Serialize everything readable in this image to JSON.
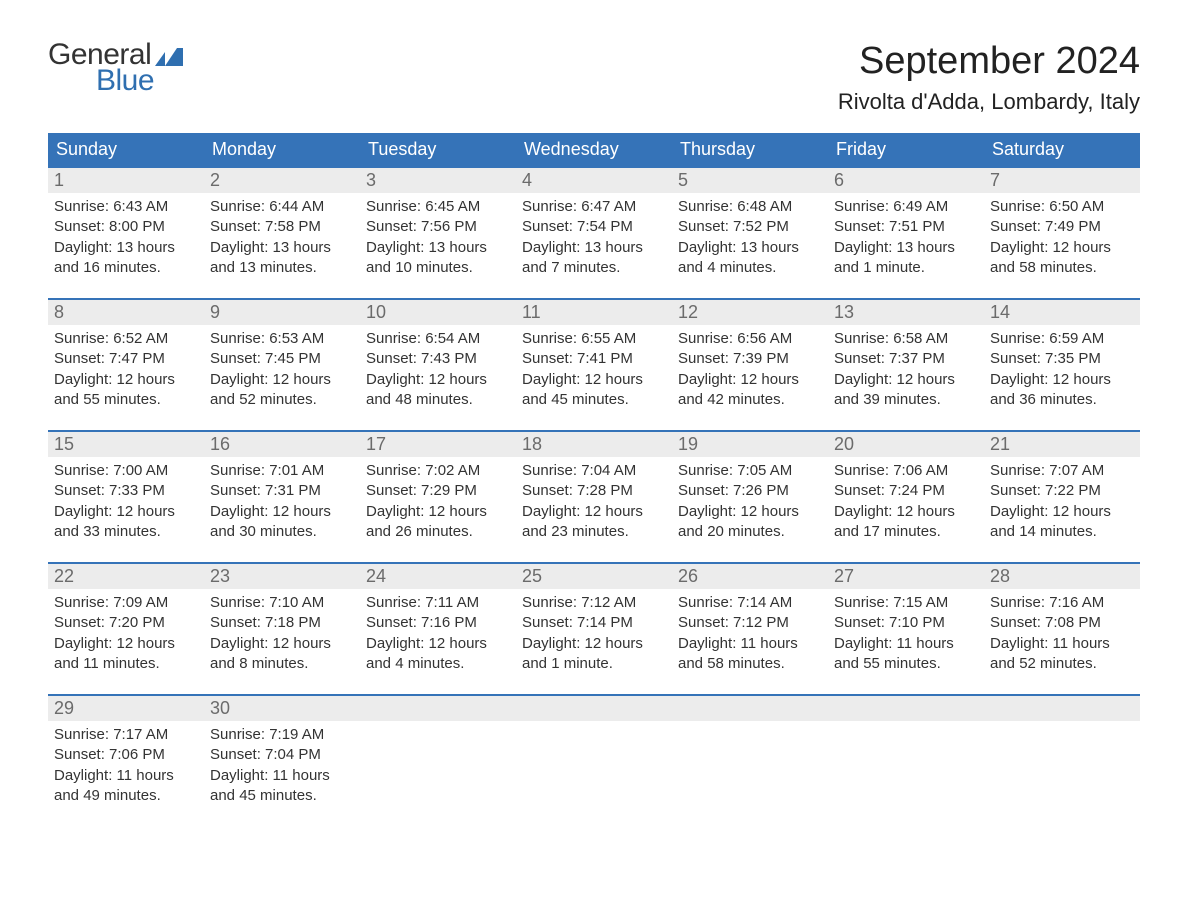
{
  "logo": {
    "word1": "General",
    "word2": "Blue",
    "text_color": "#333333",
    "accent_color": "#2f6fb0"
  },
  "title": "September 2024",
  "location": "Rivolta d'Adda, Lombardy, Italy",
  "colors": {
    "header_bg": "#3573b8",
    "header_text": "#ffffff",
    "daynum_bg": "#ececec",
    "daynum_text": "#6b6b6b",
    "body_text": "#333333",
    "week_border": "#3573b8",
    "page_bg": "#ffffff"
  },
  "fonts": {
    "title_pt": 38,
    "location_pt": 22,
    "weekday_pt": 18,
    "daynum_pt": 18,
    "body_pt": 15
  },
  "weekdays": [
    "Sunday",
    "Monday",
    "Tuesday",
    "Wednesday",
    "Thursday",
    "Friday",
    "Saturday"
  ],
  "weeks": [
    [
      {
        "n": "1",
        "sr": "Sunrise: 6:43 AM",
        "ss": "Sunset: 8:00 PM",
        "d1": "Daylight: 13 hours",
        "d2": "and 16 minutes."
      },
      {
        "n": "2",
        "sr": "Sunrise: 6:44 AM",
        "ss": "Sunset: 7:58 PM",
        "d1": "Daylight: 13 hours",
        "d2": "and 13 minutes."
      },
      {
        "n": "3",
        "sr": "Sunrise: 6:45 AM",
        "ss": "Sunset: 7:56 PM",
        "d1": "Daylight: 13 hours",
        "d2": "and 10 minutes."
      },
      {
        "n": "4",
        "sr": "Sunrise: 6:47 AM",
        "ss": "Sunset: 7:54 PM",
        "d1": "Daylight: 13 hours",
        "d2": "and 7 minutes."
      },
      {
        "n": "5",
        "sr": "Sunrise: 6:48 AM",
        "ss": "Sunset: 7:52 PM",
        "d1": "Daylight: 13 hours",
        "d2": "and 4 minutes."
      },
      {
        "n": "6",
        "sr": "Sunrise: 6:49 AM",
        "ss": "Sunset: 7:51 PM",
        "d1": "Daylight: 13 hours",
        "d2": "and 1 minute."
      },
      {
        "n": "7",
        "sr": "Sunrise: 6:50 AM",
        "ss": "Sunset: 7:49 PM",
        "d1": "Daylight: 12 hours",
        "d2": "and 58 minutes."
      }
    ],
    [
      {
        "n": "8",
        "sr": "Sunrise: 6:52 AM",
        "ss": "Sunset: 7:47 PM",
        "d1": "Daylight: 12 hours",
        "d2": "and 55 minutes."
      },
      {
        "n": "9",
        "sr": "Sunrise: 6:53 AM",
        "ss": "Sunset: 7:45 PM",
        "d1": "Daylight: 12 hours",
        "d2": "and 52 minutes."
      },
      {
        "n": "10",
        "sr": "Sunrise: 6:54 AM",
        "ss": "Sunset: 7:43 PM",
        "d1": "Daylight: 12 hours",
        "d2": "and 48 minutes."
      },
      {
        "n": "11",
        "sr": "Sunrise: 6:55 AM",
        "ss": "Sunset: 7:41 PM",
        "d1": "Daylight: 12 hours",
        "d2": "and 45 minutes."
      },
      {
        "n": "12",
        "sr": "Sunrise: 6:56 AM",
        "ss": "Sunset: 7:39 PM",
        "d1": "Daylight: 12 hours",
        "d2": "and 42 minutes."
      },
      {
        "n": "13",
        "sr": "Sunrise: 6:58 AM",
        "ss": "Sunset: 7:37 PM",
        "d1": "Daylight: 12 hours",
        "d2": "and 39 minutes."
      },
      {
        "n": "14",
        "sr": "Sunrise: 6:59 AM",
        "ss": "Sunset: 7:35 PM",
        "d1": "Daylight: 12 hours",
        "d2": "and 36 minutes."
      }
    ],
    [
      {
        "n": "15",
        "sr": "Sunrise: 7:00 AM",
        "ss": "Sunset: 7:33 PM",
        "d1": "Daylight: 12 hours",
        "d2": "and 33 minutes."
      },
      {
        "n": "16",
        "sr": "Sunrise: 7:01 AM",
        "ss": "Sunset: 7:31 PM",
        "d1": "Daylight: 12 hours",
        "d2": "and 30 minutes."
      },
      {
        "n": "17",
        "sr": "Sunrise: 7:02 AM",
        "ss": "Sunset: 7:29 PM",
        "d1": "Daylight: 12 hours",
        "d2": "and 26 minutes."
      },
      {
        "n": "18",
        "sr": "Sunrise: 7:04 AM",
        "ss": "Sunset: 7:28 PM",
        "d1": "Daylight: 12 hours",
        "d2": "and 23 minutes."
      },
      {
        "n": "19",
        "sr": "Sunrise: 7:05 AM",
        "ss": "Sunset: 7:26 PM",
        "d1": "Daylight: 12 hours",
        "d2": "and 20 minutes."
      },
      {
        "n": "20",
        "sr": "Sunrise: 7:06 AM",
        "ss": "Sunset: 7:24 PM",
        "d1": "Daylight: 12 hours",
        "d2": "and 17 minutes."
      },
      {
        "n": "21",
        "sr": "Sunrise: 7:07 AM",
        "ss": "Sunset: 7:22 PM",
        "d1": "Daylight: 12 hours",
        "d2": "and 14 minutes."
      }
    ],
    [
      {
        "n": "22",
        "sr": "Sunrise: 7:09 AM",
        "ss": "Sunset: 7:20 PM",
        "d1": "Daylight: 12 hours",
        "d2": "and 11 minutes."
      },
      {
        "n": "23",
        "sr": "Sunrise: 7:10 AM",
        "ss": "Sunset: 7:18 PM",
        "d1": "Daylight: 12 hours",
        "d2": "and 8 minutes."
      },
      {
        "n": "24",
        "sr": "Sunrise: 7:11 AM",
        "ss": "Sunset: 7:16 PM",
        "d1": "Daylight: 12 hours",
        "d2": "and 4 minutes."
      },
      {
        "n": "25",
        "sr": "Sunrise: 7:12 AM",
        "ss": "Sunset: 7:14 PM",
        "d1": "Daylight: 12 hours",
        "d2": "and 1 minute."
      },
      {
        "n": "26",
        "sr": "Sunrise: 7:14 AM",
        "ss": "Sunset: 7:12 PM",
        "d1": "Daylight: 11 hours",
        "d2": "and 58 minutes."
      },
      {
        "n": "27",
        "sr": "Sunrise: 7:15 AM",
        "ss": "Sunset: 7:10 PM",
        "d1": "Daylight: 11 hours",
        "d2": "and 55 minutes."
      },
      {
        "n": "28",
        "sr": "Sunrise: 7:16 AM",
        "ss": "Sunset: 7:08 PM",
        "d1": "Daylight: 11 hours",
        "d2": "and 52 minutes."
      }
    ],
    [
      {
        "n": "29",
        "sr": "Sunrise: 7:17 AM",
        "ss": "Sunset: 7:06 PM",
        "d1": "Daylight: 11 hours",
        "d2": "and 49 minutes."
      },
      {
        "n": "30",
        "sr": "Sunrise: 7:19 AM",
        "ss": "Sunset: 7:04 PM",
        "d1": "Daylight: 11 hours",
        "d2": "and 45 minutes."
      },
      {
        "empty": true
      },
      {
        "empty": true
      },
      {
        "empty": true
      },
      {
        "empty": true
      },
      {
        "empty": true
      }
    ]
  ]
}
